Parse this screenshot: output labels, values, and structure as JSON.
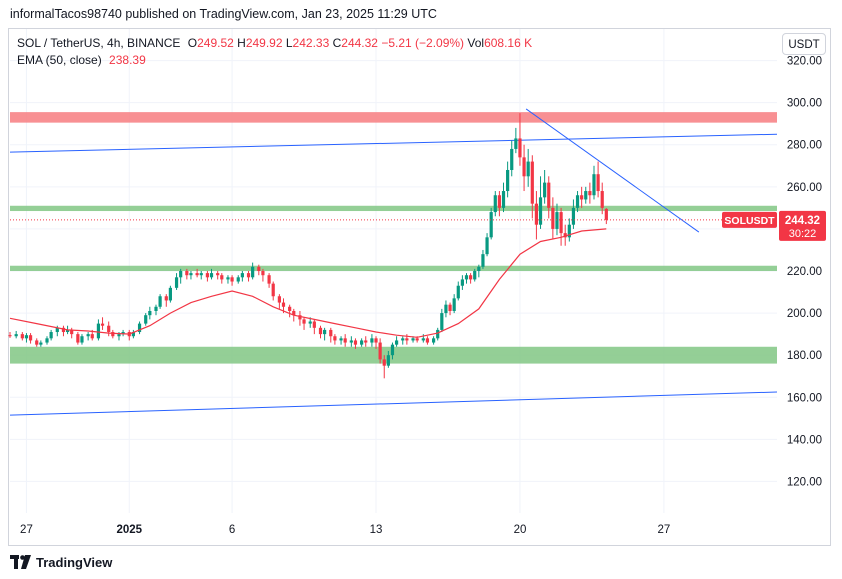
{
  "header": {
    "publish_text": "informalTacos98740 published on TradingView.com, Jan 23, 2025 11:29 UTC"
  },
  "legend": {
    "symbol": "SOL / TetherUS, 4h, BINANCE",
    "open_key": "O",
    "open": "249.52",
    "high_key": "H",
    "high": "249.92",
    "low_key": "L",
    "low": "242.33",
    "close_key": "C",
    "close": "244.32",
    "change": "−5.21 (−2.09%)",
    "vol_key": "Vol",
    "vol": "608.16 K",
    "ema_label": "EMA (50, close)",
    "ema_value": "238.39"
  },
  "toolbar": {
    "currency": "USDT"
  },
  "price_tag": {
    "symbol": "SOLUSDT",
    "price": "244.32",
    "countdown": "30:22"
  },
  "footer": {
    "brand": "TradingView"
  },
  "colors": {
    "up": "#089981",
    "down": "#f23645",
    "ema": "#f23645",
    "trendline": "#2962ff",
    "support": "#81c784",
    "resistance": "#f77c80"
  },
  "chart_data": {
    "type": "candlestick",
    "title": "SOL / TetherUS, 4h, BINANCE",
    "ylim": [
      105,
      335
    ],
    "y_ticks": [
      120,
      140,
      160,
      180,
      200,
      220,
      240,
      260,
      280,
      300,
      320
    ],
    "y_tick_labels": [
      "120.00",
      "140.00",
      "160.00",
      "180.00",
      "200.00",
      "220.00",
      "240.00",
      "260.00",
      "280.00",
      "300.00",
      "320.00"
    ],
    "x_range_days": [
      -5.8,
      31.5
    ],
    "x_ticks": [
      {
        "label": "27",
        "day": -5
      },
      {
        "label": "2025",
        "day": 0
      },
      {
        "label": "6",
        "day": 5
      },
      {
        "label": "13",
        "day": 12
      },
      {
        "label": "20",
        "day": 19
      },
      {
        "label": "27",
        "day": 26
      }
    ],
    "zones": [
      {
        "kind": "resistance",
        "from": 290.5,
        "to": 295.5
      },
      {
        "kind": "support",
        "from": 248.5,
        "to": 251
      },
      {
        "kind": "support",
        "from": 220,
        "to": 222.5
      },
      {
        "kind": "support",
        "from": 176,
        "to": 184
      }
    ],
    "trendlines": [
      {
        "x1": -5.8,
        "y1": 276.5,
        "x2": 31.5,
        "y2": 285
      },
      {
        "x1": -5.8,
        "y1": 151.5,
        "x2": 31.5,
        "y2": 162.5
      },
      {
        "x1": 19.3,
        "y1": 297,
        "x2": 27.7,
        "y2": 238.5
      }
    ],
    "last_price": 244.32,
    "ema_series": [
      [
        -5.8,
        197.5
      ],
      [
        -4.5,
        195
      ],
      [
        -3,
        192
      ],
      [
        -2,
        191.5
      ],
      [
        -1,
        190.5
      ],
      [
        0,
        190
      ],
      [
        1,
        194
      ],
      [
        2,
        200
      ],
      [
        3,
        205
      ],
      [
        4,
        208
      ],
      [
        5,
        210.5
      ],
      [
        6,
        208
      ],
      [
        7,
        203
      ],
      [
        8,
        199
      ],
      [
        9,
        197
      ],
      [
        10,
        195
      ],
      [
        11,
        193
      ],
      [
        12,
        191
      ],
      [
        13,
        189.5
      ],
      [
        14,
        188.5
      ],
      [
        15,
        190.5
      ],
      [
        16,
        195
      ],
      [
        17,
        202
      ],
      [
        18,
        216
      ],
      [
        19,
        228
      ],
      [
        20,
        234
      ],
      [
        21,
        236
      ],
      [
        22,
        239
      ],
      [
        23.2,
        240
      ]
    ],
    "candles": [
      [
        -5.8,
        189.5,
        189,
        191,
        188.2
      ],
      [
        -5.5,
        189,
        190,
        191.5,
        188
      ],
      [
        -5.2,
        190,
        188,
        191,
        187
      ],
      [
        -5,
        188,
        189.5,
        190.5,
        186
      ],
      [
        -4.8,
        189.5,
        187,
        190.5,
        185.5
      ],
      [
        -4.5,
        187,
        185,
        188,
        184
      ],
      [
        -4.3,
        185,
        186,
        187,
        184
      ],
      [
        -4,
        186,
        188,
        189,
        185
      ],
      [
        -3.8,
        188,
        191,
        192,
        187
      ],
      [
        -3.5,
        191,
        193,
        194,
        189
      ],
      [
        -3.2,
        193,
        191,
        194,
        189
      ],
      [
        -3,
        191,
        192,
        194,
        190
      ],
      [
        -2.8,
        192,
        190,
        193,
        188
      ],
      [
        -2.5,
        190,
        186,
        191,
        185
      ],
      [
        -2.3,
        186,
        189,
        190,
        185
      ],
      [
        -2,
        189,
        190,
        191,
        187
      ],
      [
        -1.8,
        190,
        188,
        192,
        187
      ],
      [
        -1.5,
        188,
        195,
        197,
        187
      ],
      [
        -1.3,
        195,
        194,
        198,
        192
      ],
      [
        -1,
        194,
        191,
        196,
        189
      ],
      [
        -0.8,
        191,
        189,
        192,
        188
      ],
      [
        -0.5,
        189,
        190,
        191,
        187
      ],
      [
        -0.3,
        190,
        191,
        192,
        189
      ],
      [
        0,
        191,
        189,
        192,
        187
      ],
      [
        0.2,
        189,
        191,
        192,
        188
      ],
      [
        0.5,
        191,
        195,
        196,
        190
      ],
      [
        0.8,
        195,
        199,
        200,
        194
      ],
      [
        1,
        199,
        201,
        203,
        197
      ],
      [
        1.3,
        201,
        203,
        204,
        199
      ],
      [
        1.5,
        203,
        208,
        209,
        202
      ],
      [
        1.8,
        208,
        206,
        209,
        203
      ],
      [
        2,
        206,
        212,
        213,
        205
      ],
      [
        2.3,
        212,
        217,
        219,
        211
      ],
      [
        2.5,
        217,
        220,
        221,
        214
      ],
      [
        2.8,
        220,
        218,
        221,
        216
      ],
      [
        3,
        218,
        219,
        220,
        216
      ],
      [
        3.3,
        219,
        218,
        221,
        217
      ],
      [
        3.5,
        218,
        219,
        220,
        216
      ],
      [
        3.8,
        219,
        217,
        220,
        215
      ],
      [
        4,
        217,
        219,
        221,
        216
      ],
      [
        4.3,
        219,
        218,
        220,
        216
      ],
      [
        4.5,
        218,
        216,
        219,
        214
      ],
      [
        4.8,
        216,
        217,
        218,
        214
      ],
      [
        5,
        217,
        215,
        218,
        213
      ],
      [
        5.3,
        215,
        217,
        218,
        214
      ],
      [
        5.5,
        217,
        219,
        220,
        215
      ],
      [
        5.8,
        219,
        217,
        220,
        215
      ],
      [
        6,
        217,
        222,
        224,
        216
      ],
      [
        6.3,
        222,
        220,
        223,
        218
      ],
      [
        6.5,
        220,
        218,
        221,
        215
      ],
      [
        6.8,
        218,
        214,
        219,
        212
      ],
      [
        7,
        214,
        208,
        215,
        206
      ],
      [
        7.3,
        208,
        205,
        209,
        202
      ],
      [
        7.5,
        205,
        203,
        207,
        200
      ],
      [
        7.8,
        203,
        201,
        204,
        198
      ],
      [
        8,
        201,
        199,
        202,
        196
      ],
      [
        8.3,
        199,
        197,
        201,
        194
      ],
      [
        8.5,
        197,
        195,
        198,
        192
      ],
      [
        8.8,
        195,
        196,
        198,
        193
      ],
      [
        9,
        196,
        193,
        197,
        190
      ],
      [
        9.3,
        193,
        190,
        194,
        188
      ],
      [
        9.5,
        190,
        192,
        193,
        187
      ],
      [
        9.8,
        192,
        189,
        193,
        186
      ],
      [
        10,
        189,
        187,
        190,
        185
      ],
      [
        10.3,
        187,
        188,
        189,
        185
      ],
      [
        10.5,
        188,
        186,
        190,
        184
      ],
      [
        10.8,
        186,
        187,
        189,
        184
      ],
      [
        11,
        187,
        185,
        188,
        183
      ],
      [
        11.3,
        185,
        187,
        188,
        184
      ],
      [
        11.5,
        187,
        186,
        189,
        184
      ],
      [
        11.8,
        186,
        188,
        190,
        184
      ],
      [
        12,
        188,
        186,
        189,
        183
      ],
      [
        12.2,
        186,
        178,
        188,
        176
      ],
      [
        12.4,
        178,
        175,
        180,
        169
      ],
      [
        12.6,
        175,
        180,
        182,
        174
      ],
      [
        12.8,
        180,
        185,
        186,
        178
      ],
      [
        13,
        185,
        187,
        189,
        184
      ],
      [
        13.3,
        187,
        188,
        189,
        185
      ],
      [
        13.5,
        188,
        187,
        190,
        185
      ],
      [
        13.8,
        187,
        188,
        189,
        186
      ],
      [
        14,
        188,
        187,
        189,
        186
      ],
      [
        14.3,
        187,
        188,
        190,
        186
      ],
      [
        14.5,
        188,
        186,
        189,
        185
      ],
      [
        14.8,
        186,
        188,
        189,
        185
      ],
      [
        15,
        188,
        192,
        193,
        187
      ],
      [
        15.2,
        192,
        200,
        202,
        191
      ],
      [
        15.4,
        200,
        204,
        206,
        198
      ],
      [
        15.6,
        204,
        201,
        205,
        199
      ],
      [
        15.8,
        201,
        207,
        209,
        200
      ],
      [
        16,
        207,
        213,
        215,
        206
      ],
      [
        16.2,
        213,
        216,
        218,
        211
      ],
      [
        16.4,
        216,
        218,
        219,
        214
      ],
      [
        16.6,
        218,
        216,
        219,
        214
      ],
      [
        16.8,
        216,
        220,
        221,
        215
      ],
      [
        17,
        220,
        222,
        223,
        217
      ],
      [
        17.2,
        222,
        228,
        230,
        221
      ],
      [
        17.4,
        228,
        236,
        238,
        227
      ],
      [
        17.6,
        236,
        248,
        250,
        235
      ],
      [
        17.8,
        248,
        256,
        258,
        246
      ],
      [
        18,
        256,
        250,
        258,
        246
      ],
      [
        18.2,
        250,
        258,
        262,
        248
      ],
      [
        18.4,
        258,
        268,
        272,
        255
      ],
      [
        18.6,
        268,
        278,
        282,
        265
      ],
      [
        18.8,
        278,
        283,
        288,
        276
      ],
      [
        19,
        283,
        274,
        295,
        270
      ],
      [
        19.2,
        274,
        265,
        280,
        258
      ],
      [
        19.4,
        265,
        272,
        278,
        260
      ],
      [
        19.6,
        272,
        252,
        275,
        245
      ],
      [
        19.8,
        252,
        242,
        258,
        235
      ],
      [
        20,
        242,
        255,
        265,
        240
      ],
      [
        20.2,
        255,
        262,
        268,
        252
      ],
      [
        20.4,
        262,
        250,
        265,
        245
      ],
      [
        20.6,
        250,
        240,
        255,
        235
      ],
      [
        20.8,
        240,
        248,
        252,
        237
      ],
      [
        21,
        248,
        238,
        250,
        232
      ],
      [
        21.2,
        238,
        236,
        242,
        232
      ],
      [
        21.4,
        236,
        242,
        245,
        234
      ],
      [
        21.6,
        242,
        250,
        254,
        240
      ],
      [
        21.8,
        250,
        256,
        258,
        248
      ],
      [
        22,
        256,
        254,
        260,
        250
      ],
      [
        22.2,
        254,
        258,
        260,
        252
      ],
      [
        22.4,
        258,
        256,
        262,
        252
      ],
      [
        22.6,
        256,
        266,
        270,
        254
      ],
      [
        22.8,
        266,
        258,
        272,
        255
      ],
      [
        23,
        258,
        250,
        262,
        247
      ],
      [
        23.2,
        249.5,
        244.3,
        249.9,
        242.3
      ]
    ]
  }
}
